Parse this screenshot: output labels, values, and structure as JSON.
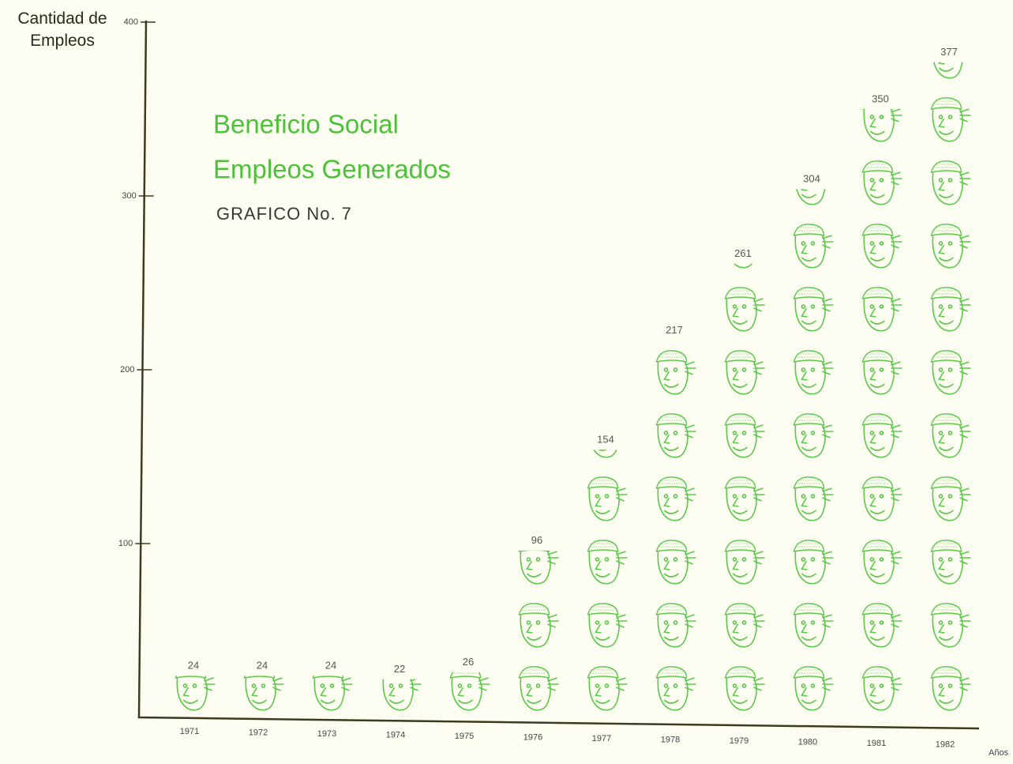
{
  "chart_data": {
    "type": "pictograph",
    "title": "Beneficio Social",
    "subtitle": "Empleos Generados",
    "caption": "GRAFICO No. 7",
    "y_label": "Cantidad de Empleos",
    "x_label": "Años",
    "categories": [
      "1971",
      "1972",
      "1973",
      "1974",
      "1975",
      "1976",
      "1977",
      "1978",
      "1979",
      "1980",
      "1981",
      "1982"
    ],
    "values": [
      24,
      24,
      24,
      22,
      26,
      96,
      154,
      217,
      261,
      304,
      350,
      377
    ],
    "color": "#5cc84a",
    "ylim": [
      0,
      400
    ],
    "yticks": [
      100,
      200,
      300,
      400
    ]
  }
}
